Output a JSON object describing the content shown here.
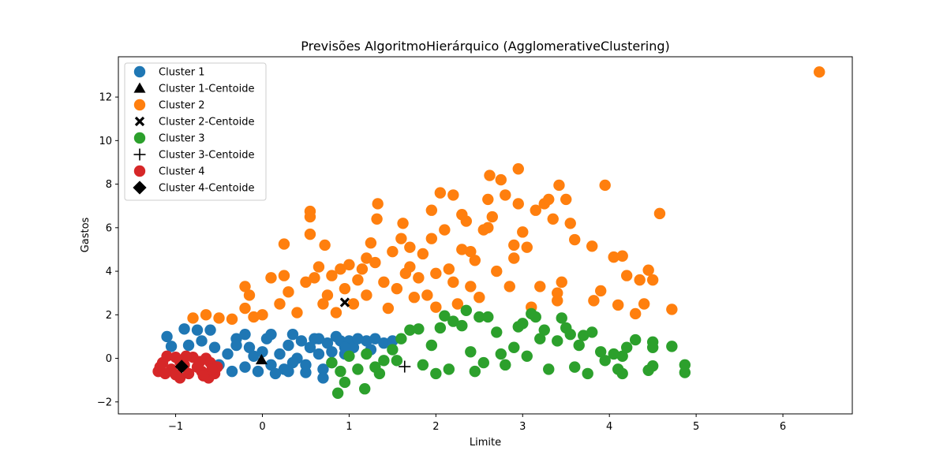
{
  "chart_data": {
    "type": "scatter",
    "title": "Previsões AlgoritmoHierárquico (AgglomerativeClustering)",
    "xlabel": "Limite",
    "ylabel": "Gastos",
    "xlim": [
      -1.66,
      6.8
    ],
    "ylim": [
      -2.55,
      13.85
    ],
    "xticks": [
      -1,
      0,
      1,
      2,
      3,
      4,
      5,
      6
    ],
    "yticks": [
      -2,
      0,
      2,
      4,
      6,
      8,
      10,
      12
    ],
    "grid": false,
    "legend_position": "top-left",
    "series": [
      {
        "name": "Cluster 1",
        "color": "#1f77b4",
        "marker": "circle",
        "points": [
          [
            -1.1,
            1.0
          ],
          [
            -0.9,
            1.35
          ],
          [
            -0.75,
            1.3
          ],
          [
            -0.6,
            1.3
          ],
          [
            -1.05,
            0.55
          ],
          [
            -0.85,
            0.6
          ],
          [
            -0.7,
            0.8
          ],
          [
            -0.55,
            0.5
          ],
          [
            -0.4,
            0.2
          ],
          [
            -0.3,
            0.9
          ],
          [
            -0.2,
            1.1
          ],
          [
            -0.15,
            0.5
          ],
          [
            -0.1,
            0.1
          ],
          [
            0.0,
            0.3
          ],
          [
            0.05,
            0.9
          ],
          [
            0.1,
            1.1
          ],
          [
            0.2,
            0.2
          ],
          [
            0.25,
            -0.5
          ],
          [
            0.3,
            0.6
          ],
          [
            0.35,
            1.1
          ],
          [
            0.4,
            0.0
          ],
          [
            0.45,
            0.8
          ],
          [
            0.5,
            -0.3
          ],
          [
            0.55,
            0.5
          ],
          [
            0.6,
            0.9
          ],
          [
            0.65,
            0.2
          ],
          [
            0.7,
            -0.5
          ],
          [
            0.75,
            0.7
          ],
          [
            0.8,
            0.3
          ],
          [
            0.85,
            1.0
          ],
          [
            0.9,
            0.8
          ],
          [
            0.95,
            0.2
          ],
          [
            1.0,
            0.8
          ],
          [
            1.05,
            0.5
          ],
          [
            1.1,
            0.9
          ],
          [
            1.2,
            0.8
          ],
          [
            1.3,
            0.9
          ],
          [
            1.4,
            0.7
          ],
          [
            1.5,
            0.8
          ],
          [
            -0.5,
            -0.3
          ],
          [
            -0.35,
            -0.6
          ],
          [
            -0.2,
            -0.4
          ],
          [
            -0.05,
            -0.6
          ],
          [
            0.1,
            -0.3
          ],
          [
            0.3,
            -0.6
          ],
          [
            0.5,
            -0.65
          ],
          [
            0.15,
            -0.7
          ],
          [
            -0.3,
            0.6
          ],
          [
            0.65,
            0.9
          ],
          [
            0.8,
            -0.2
          ],
          [
            0.95,
            0.5
          ],
          [
            0.35,
            -0.2
          ],
          [
            1.25,
            0.4
          ],
          [
            0.7,
            -0.9
          ]
        ]
      },
      {
        "name": "Cluster 1-Centoide",
        "color": "#000000",
        "marker": "triangle",
        "points": [
          [
            -0.01,
            -0.07
          ]
        ]
      },
      {
        "name": "Cluster 2",
        "color": "#ff7f0e",
        "marker": "circle",
        "points": [
          [
            6.42,
            13.15
          ],
          [
            -0.8,
            1.85
          ],
          [
            -0.65,
            2.0
          ],
          [
            -0.5,
            1.85
          ],
          [
            -0.35,
            1.8
          ],
          [
            -0.2,
            2.3
          ],
          [
            -0.2,
            3.3
          ],
          [
            -0.15,
            2.9
          ],
          [
            -0.1,
            1.9
          ],
          [
            0.0,
            2.0
          ],
          [
            0.1,
            3.7
          ],
          [
            0.2,
            2.5
          ],
          [
            0.25,
            5.25
          ],
          [
            0.25,
            3.8
          ],
          [
            0.3,
            3.05
          ],
          [
            0.4,
            2.1
          ],
          [
            0.5,
            3.5
          ],
          [
            0.55,
            6.75
          ],
          [
            0.55,
            6.5
          ],
          [
            0.55,
            5.7
          ],
          [
            0.6,
            3.7
          ],
          [
            0.65,
            4.2
          ],
          [
            0.7,
            2.5
          ],
          [
            0.72,
            5.2
          ],
          [
            0.8,
            3.8
          ],
          [
            0.85,
            2.1
          ],
          [
            0.9,
            4.1
          ],
          [
            0.95,
            3.2
          ],
          [
            1.0,
            4.3
          ],
          [
            1.05,
            2.5
          ],
          [
            1.1,
            3.6
          ],
          [
            1.15,
            4.1
          ],
          [
            1.2,
            2.9
          ],
          [
            1.25,
            5.3
          ],
          [
            1.3,
            4.4
          ],
          [
            1.32,
            6.4
          ],
          [
            1.33,
            7.1
          ],
          [
            1.4,
            3.5
          ],
          [
            1.45,
            2.3
          ],
          [
            1.5,
            4.9
          ],
          [
            1.55,
            3.2
          ],
          [
            1.6,
            5.5
          ],
          [
            1.62,
            6.2
          ],
          [
            1.7,
            4.2
          ],
          [
            1.75,
            2.8
          ],
          [
            1.8,
            3.7
          ],
          [
            1.85,
            4.8
          ],
          [
            1.9,
            2.9
          ],
          [
            1.95,
            6.8
          ],
          [
            2.0,
            3.9
          ],
          [
            2.05,
            7.6
          ],
          [
            2.1,
            5.9
          ],
          [
            2.15,
            4.1
          ],
          [
            2.2,
            3.5
          ],
          [
            2.2,
            7.5
          ],
          [
            2.25,
            2.5
          ],
          [
            2.3,
            5.0
          ],
          [
            2.35,
            6.3
          ],
          [
            2.4,
            3.3
          ],
          [
            2.45,
            4.5
          ],
          [
            2.5,
            2.8
          ],
          [
            2.55,
            5.9
          ],
          [
            2.6,
            7.3
          ],
          [
            2.62,
            8.4
          ],
          [
            2.65,
            6.5
          ],
          [
            2.7,
            4.0
          ],
          [
            2.75,
            8.2
          ],
          [
            2.8,
            7.5
          ],
          [
            2.85,
            3.3
          ],
          [
            2.9,
            4.6
          ],
          [
            2.95,
            8.7
          ],
          [
            2.95,
            7.1
          ],
          [
            3.0,
            5.8
          ],
          [
            3.05,
            5.1
          ],
          [
            3.1,
            2.35
          ],
          [
            3.15,
            6.8
          ],
          [
            3.2,
            3.3
          ],
          [
            3.25,
            7.1
          ],
          [
            3.3,
            7.3
          ],
          [
            3.35,
            6.4
          ],
          [
            3.4,
            2.65
          ],
          [
            3.4,
            3.0
          ],
          [
            3.42,
            7.95
          ],
          [
            3.45,
            3.5
          ],
          [
            3.5,
            7.3
          ],
          [
            3.55,
            6.2
          ],
          [
            3.6,
            5.45
          ],
          [
            3.8,
            5.15
          ],
          [
            3.82,
            2.65
          ],
          [
            3.9,
            3.1
          ],
          [
            3.95,
            7.95
          ],
          [
            4.05,
            4.65
          ],
          [
            4.1,
            2.45
          ],
          [
            4.15,
            4.7
          ],
          [
            4.2,
            3.8
          ],
          [
            4.3,
            2.05
          ],
          [
            4.35,
            3.6
          ],
          [
            4.4,
            2.5
          ],
          [
            4.45,
            4.05
          ],
          [
            4.5,
            3.6
          ],
          [
            4.58,
            6.65
          ],
          [
            4.72,
            2.25
          ],
          [
            2.6,
            6.0
          ],
          [
            2.3,
            6.6
          ],
          [
            1.95,
            5.5
          ],
          [
            1.7,
            5.1
          ],
          [
            2.4,
            4.9
          ],
          [
            2.9,
            5.2
          ],
          [
            1.2,
            4.6
          ],
          [
            0.75,
            2.9
          ],
          [
            2.0,
            2.35
          ],
          [
            1.65,
            3.9
          ]
        ]
      },
      {
        "name": "Cluster 2-Centoide",
        "color": "#000000",
        "marker": "x",
        "points": [
          [
            0.95,
            2.57
          ]
        ]
      },
      {
        "name": "Cluster 3",
        "color": "#2ca02c",
        "marker": "circle",
        "points": [
          [
            0.87,
            -1.6
          ],
          [
            0.95,
            -1.1
          ],
          [
            1.18,
            -1.4
          ],
          [
            0.8,
            -0.2
          ],
          [
            0.9,
            -0.6
          ],
          [
            1.0,
            0.1
          ],
          [
            1.1,
            -0.5
          ],
          [
            1.2,
            0.2
          ],
          [
            1.3,
            -0.4
          ],
          [
            1.4,
            -0.1
          ],
          [
            1.5,
            0.4
          ],
          [
            1.6,
            0.9
          ],
          [
            1.7,
            1.3
          ],
          [
            1.8,
            1.35
          ],
          [
            1.85,
            -0.3
          ],
          [
            1.95,
            0.6
          ],
          [
            2.05,
            1.4
          ],
          [
            2.1,
            1.95
          ],
          [
            2.15,
            -0.5
          ],
          [
            2.2,
            1.7
          ],
          [
            2.3,
            1.5
          ],
          [
            2.35,
            2.2
          ],
          [
            2.4,
            0.3
          ],
          [
            2.5,
            1.9
          ],
          [
            2.55,
            -0.2
          ],
          [
            2.6,
            1.9
          ],
          [
            2.7,
            1.2
          ],
          [
            2.75,
            0.2
          ],
          [
            2.8,
            -0.3
          ],
          [
            2.9,
            0.5
          ],
          [
            2.95,
            1.45
          ],
          [
            3.0,
            1.6
          ],
          [
            3.05,
            0.1
          ],
          [
            3.1,
            2.05
          ],
          [
            3.15,
            1.9
          ],
          [
            3.2,
            0.9
          ],
          [
            3.25,
            1.3
          ],
          [
            3.3,
            -0.5
          ],
          [
            3.4,
            0.8
          ],
          [
            3.45,
            1.85
          ],
          [
            3.5,
            1.4
          ],
          [
            3.55,
            1.1
          ],
          [
            3.6,
            -0.4
          ],
          [
            3.65,
            0.6
          ],
          [
            3.7,
            1.05
          ],
          [
            3.75,
            -0.7
          ],
          [
            3.8,
            1.2
          ],
          [
            3.9,
            0.3
          ],
          [
            3.95,
            -0.1
          ],
          [
            4.05,
            0.2
          ],
          [
            4.1,
            -0.5
          ],
          [
            4.15,
            0.1
          ],
          [
            4.2,
            0.5
          ],
          [
            4.3,
            0.85
          ],
          [
            4.45,
            -0.55
          ],
          [
            4.5,
            0.75
          ],
          [
            4.5,
            0.5
          ],
          [
            4.5,
            -0.35
          ],
          [
            4.72,
            0.55
          ],
          [
            4.87,
            -0.65
          ],
          [
            4.87,
            -0.3
          ],
          [
            4.15,
            -0.7
          ],
          [
            2.0,
            -0.7
          ],
          [
            2.45,
            -0.6
          ],
          [
            1.35,
            -0.7
          ],
          [
            1.55,
            -0.1
          ]
        ]
      },
      {
        "name": "Cluster 3-Centoide",
        "color": "#000000",
        "marker": "plus",
        "points": [
          [
            1.64,
            -0.38
          ]
        ]
      },
      {
        "name": "Cluster 4",
        "color": "#d62728",
        "marker": "circle",
        "points": [
          [
            -1.2,
            -0.6
          ],
          [
            -1.15,
            -0.2
          ],
          [
            -1.1,
            0.1
          ],
          [
            -1.05,
            -0.5
          ],
          [
            -1.0,
            0.05
          ],
          [
            -0.95,
            -0.9
          ],
          [
            -0.9,
            -0.3
          ],
          [
            -0.85,
            -0.7
          ],
          [
            -0.8,
            0.05
          ],
          [
            -0.75,
            -0.4
          ],
          [
            -0.7,
            -0.6
          ],
          [
            -0.65,
            0.0
          ],
          [
            -0.62,
            -0.9
          ],
          [
            -0.6,
            -0.2
          ],
          [
            -0.55,
            -0.7
          ],
          [
            -0.52,
            -0.4
          ],
          [
            -1.18,
            -0.4
          ],
          [
            -1.12,
            -0.7
          ],
          [
            -0.88,
            0.1
          ],
          [
            -0.58,
            -0.5
          ],
          [
            -0.72,
            -0.15
          ],
          [
            -1.0,
            -0.75
          ],
          [
            -0.95,
            -0.15
          ],
          [
            -0.68,
            -0.8
          ]
        ]
      },
      {
        "name": "Cluster 4-Centoide",
        "color": "#000000",
        "marker": "diamond",
        "points": [
          [
            -0.93,
            -0.38
          ]
        ]
      }
    ]
  }
}
